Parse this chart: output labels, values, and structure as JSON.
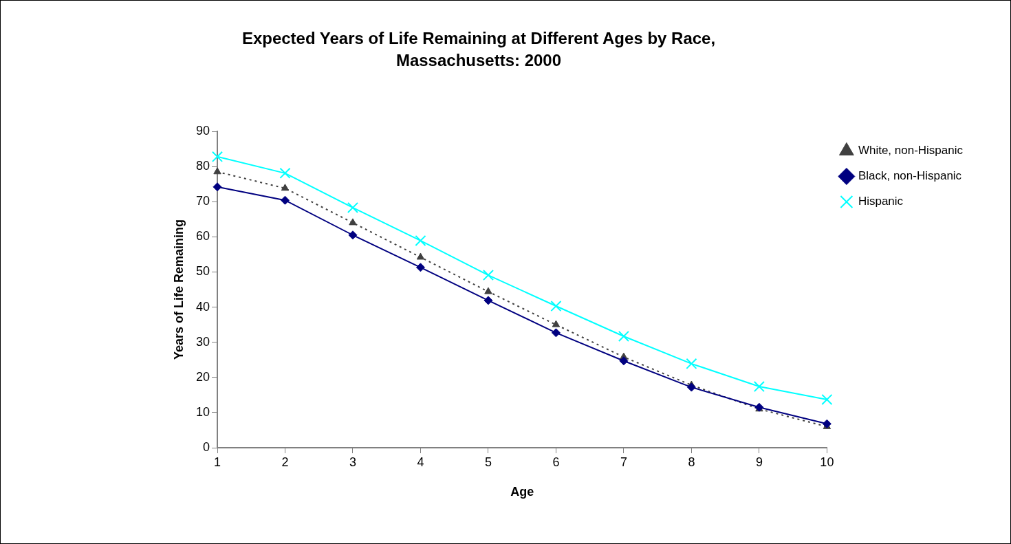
{
  "chart_data": {
    "type": "line",
    "title": "Expected Years of Life Remaining at Different Ages by Race, Massachusetts: 2000",
    "xlabel": "Age",
    "ylabel": "Years of Life Remaining",
    "categories": [
      "1",
      "2",
      "3",
      "4",
      "5",
      "6",
      "7",
      "8",
      "9",
      "10"
    ],
    "series": [
      {
        "name": "White, non-Hispanic",
        "color": "#404040",
        "marker": "triangle",
        "line_style": "dotted",
        "values": [
          78.5,
          73.8,
          64,
          54.2,
          44.4,
          35,
          25.8,
          17.8,
          11,
          6
        ]
      },
      {
        "name": "Black, non-Hispanic",
        "color": "#000080",
        "marker": "diamond",
        "line_style": "solid",
        "values": [
          74.2,
          70.4,
          60.5,
          51.3,
          41.9,
          32.7,
          24.7,
          17.2,
          11.5,
          6.8
        ]
      },
      {
        "name": "Hispanic",
        "color": "#00ffff",
        "marker": "cross",
        "line_style": "solid",
        "values": [
          82.8,
          78.1,
          68.3,
          58.9,
          49.1,
          40.3,
          31.7,
          23.9,
          17.4,
          13.7
        ]
      }
    ],
    "ylim": [
      0,
      90
    ],
    "yticks": [
      0,
      10,
      20,
      30,
      40,
      50,
      60,
      70,
      80,
      90
    ],
    "grid": false,
    "legend": "top right"
  }
}
